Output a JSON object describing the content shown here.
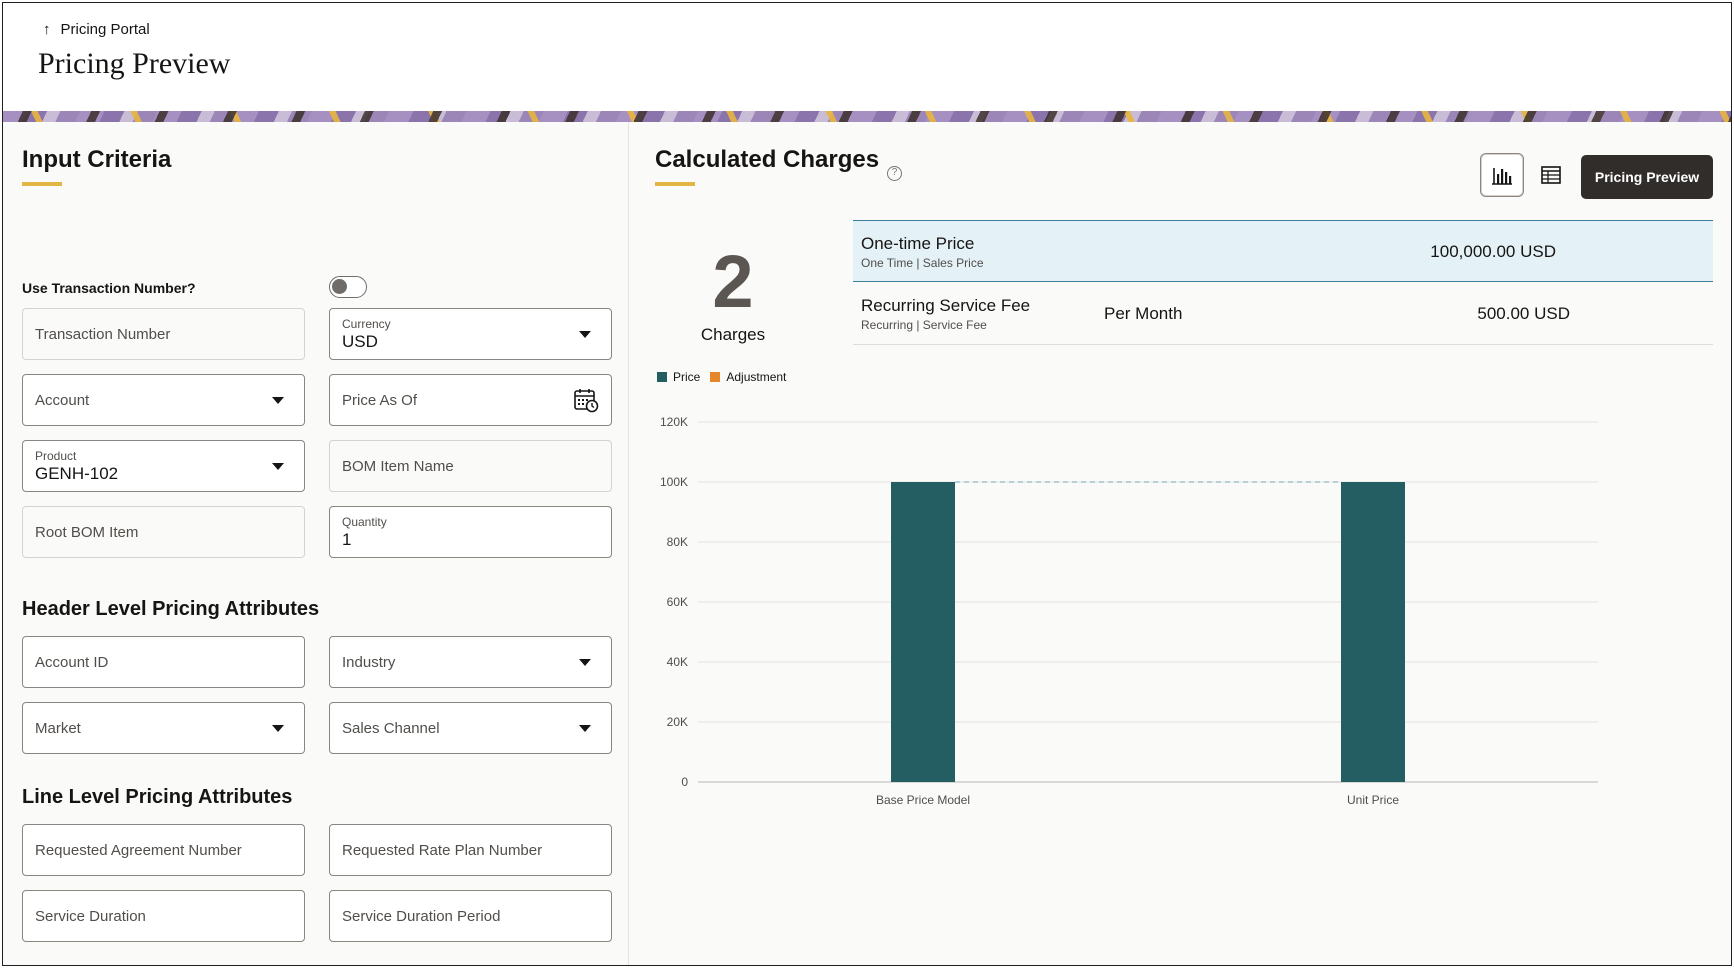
{
  "header": {
    "back_label": "Pricing Portal",
    "title": "Pricing Preview"
  },
  "input_criteria": {
    "title": "Input Criteria",
    "toggle_label": "Use Transaction Number?",
    "toggle_on": false,
    "transaction_number": {
      "placeholder": "Transaction Number"
    },
    "currency": {
      "label": "Currency",
      "value": "USD"
    },
    "account": {
      "placeholder": "Account"
    },
    "price_as_of": {
      "placeholder": "Price As Of"
    },
    "product": {
      "label": "Product",
      "value": "GENH-102"
    },
    "bom_item_name": {
      "placeholder": "BOM Item Name"
    },
    "root_bom_item": {
      "placeholder": "Root BOM Item"
    },
    "quantity": {
      "label": "Quantity",
      "value": "1"
    }
  },
  "header_attributes": {
    "title": "Header Level Pricing Attributes",
    "account_id": {
      "placeholder": "Account ID"
    },
    "industry": {
      "placeholder": "Industry"
    },
    "market": {
      "placeholder": "Market"
    },
    "sales_channel": {
      "placeholder": "Sales Channel"
    }
  },
  "line_attributes": {
    "title": "Line Level Pricing Attributes",
    "requested_agreement_number": {
      "placeholder": "Requested Agreement Number"
    },
    "requested_rate_plan_number": {
      "placeholder": "Requested Rate Plan Number"
    },
    "service_duration": {
      "placeholder": "Service Duration"
    },
    "service_duration_period": {
      "placeholder": "Service Duration Period"
    }
  },
  "calculated_charges": {
    "title": "Calculated Charges",
    "help_icon": "?",
    "primary_button": "Pricing Preview",
    "count": "2",
    "count_label": "Charges",
    "rows": [
      {
        "name": "One-time Price",
        "meta": "One Time | Sales Price",
        "frequency": "",
        "amount": "100,000.00 USD",
        "selected": true
      },
      {
        "name": "Recurring Service Fee",
        "meta": "Recurring | Service Fee",
        "frequency": "Per Month",
        "amount": "500.00 USD",
        "selected": false
      }
    ]
  },
  "colors": {
    "price": "#245e63",
    "adjustment": "#e5862a",
    "accent": "#e3b544"
  },
  "chart_data": {
    "type": "bar",
    "categories": [
      "Base Price Model",
      "Unit Price"
    ],
    "series": [
      {
        "name": "Price",
        "values": [
          100000,
          100000
        ]
      },
      {
        "name": "Adjustment",
        "values": [
          0,
          0
        ]
      }
    ],
    "yticks": [
      "0",
      "20K",
      "40K",
      "60K",
      "80K",
      "100K",
      "120K"
    ],
    "ylim": [
      0,
      120000
    ],
    "legend": "top-left",
    "grid": true
  }
}
